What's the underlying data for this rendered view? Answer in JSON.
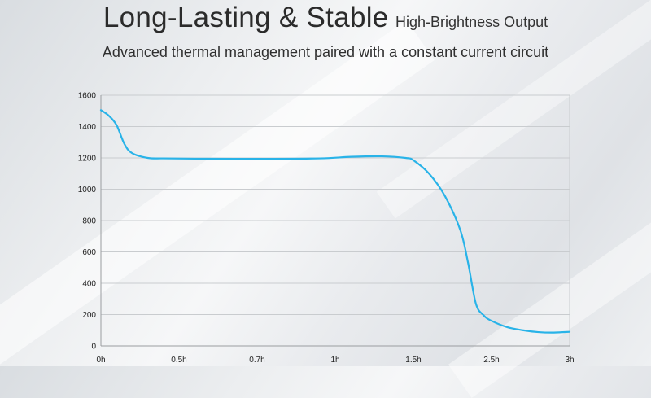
{
  "header": {
    "title": "Long-Lasting & Stable",
    "title_suffix": "High-Brightness Output",
    "subtitle": "Advanced thermal management paired with a constant current circuit"
  },
  "chart_data": {
    "type": "line",
    "title": "",
    "xlabel": "",
    "ylabel": "",
    "x_ticks": [
      {
        "label": "0h",
        "value": 0
      },
      {
        "label": "0.5h",
        "value": 0.5
      },
      {
        "label": "0.7h",
        "value": 1.0
      },
      {
        "label": "1h",
        "value": 1.5
      },
      {
        "label": "1.5h",
        "value": 2.0
      },
      {
        "label": "2.5h",
        "value": 2.5
      },
      {
        "label": "3h",
        "value": 3.0
      }
    ],
    "xlim": [
      0,
      3
    ],
    "ylim": [
      0,
      1600
    ],
    "y_ticks": [
      0,
      200,
      400,
      600,
      800,
      1000,
      1200,
      1400,
      1600
    ],
    "grid": true,
    "line_color": "#29b3e8",
    "series": [
      {
        "x": [
          0,
          0.05,
          0.1,
          0.15,
          0.2,
          0.3,
          0.4,
          0.6,
          1.0,
          1.4,
          1.6,
          1.8,
          1.95,
          2.0,
          2.1,
          2.2,
          2.3,
          2.35,
          2.4,
          2.45,
          2.5,
          2.6,
          2.7,
          2.8,
          2.9,
          3.0
        ],
        "y": [
          1505,
          1470,
          1410,
          1290,
          1230,
          1200,
          1197,
          1195,
          1194,
          1197,
          1207,
          1210,
          1200,
          1185,
          1100,
          960,
          740,
          530,
          270,
          195,
          160,
          120,
          100,
          88,
          85,
          90
        ]
      }
    ]
  }
}
